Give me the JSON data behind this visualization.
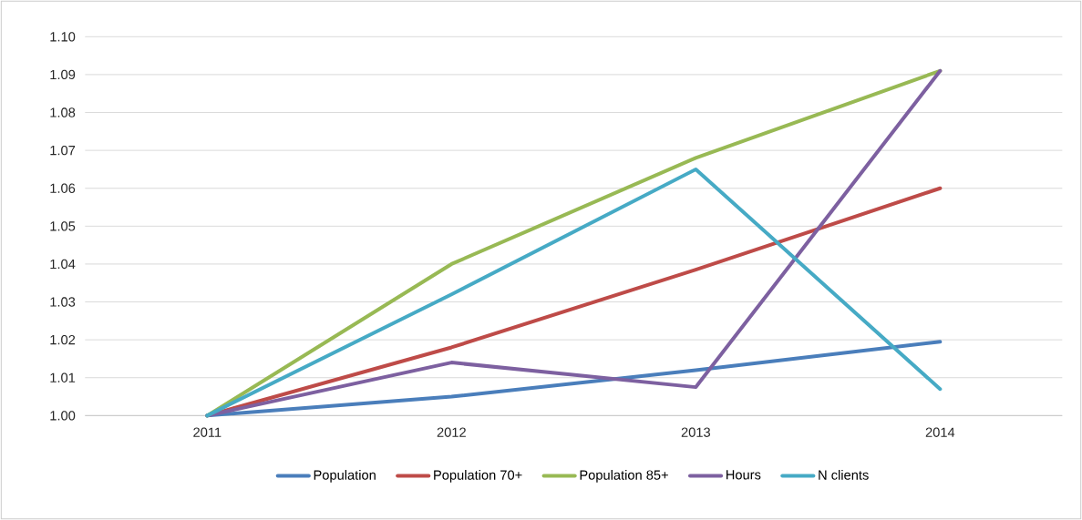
{
  "chart_data": {
    "type": "line",
    "categories": [
      "2011",
      "2012",
      "2013",
      "2014"
    ],
    "series": [
      {
        "name": "Population",
        "color": "#4a7ebb",
        "values": [
          1.0,
          1.005,
          1.012,
          1.0195
        ]
      },
      {
        "name": "Population 70+",
        "color": "#be4b48",
        "values": [
          1.0,
          1.018,
          1.0385,
          1.06
        ]
      },
      {
        "name": "Population 85+",
        "color": "#98b954",
        "values": [
          1.0,
          1.04,
          1.068,
          1.091
        ]
      },
      {
        "name": "Hours",
        "color": "#7d60a0",
        "values": [
          1.0,
          1.014,
          1.0075,
          1.091
        ]
      },
      {
        "name": "N clients",
        "color": "#46aac5",
        "values": [
          1.0,
          1.032,
          1.065,
          1.007
        ]
      }
    ],
    "ylim": [
      1.0,
      1.1
    ],
    "yticks": [
      {
        "value": 1.0,
        "label": "1.00"
      },
      {
        "value": 1.01,
        "label": "1.01"
      },
      {
        "value": 1.02,
        "label": "1.02"
      },
      {
        "value": 1.03,
        "label": "1.03"
      },
      {
        "value": 1.04,
        "label": "1.04"
      },
      {
        "value": 1.05,
        "label": "1.05"
      },
      {
        "value": 1.06,
        "label": "1.06"
      },
      {
        "value": 1.07,
        "label": "1.07"
      },
      {
        "value": 1.08,
        "label": "1.08"
      },
      {
        "value": 1.09,
        "label": "1.09"
      },
      {
        "value": 1.1,
        "label": "1.10"
      }
    ],
    "grid": "y",
    "legend": "bottom",
    "marker": "none",
    "line_style": "solid"
  }
}
